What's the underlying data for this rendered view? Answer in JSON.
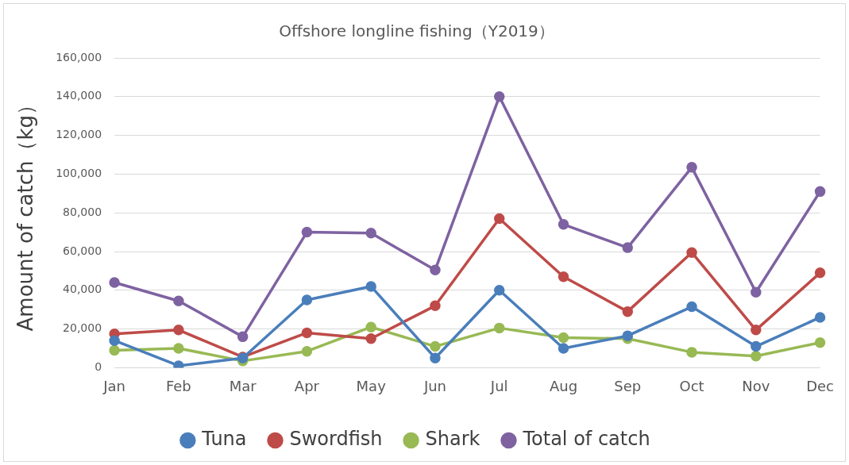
{
  "chart_data": {
    "type": "line",
    "title": "Offshore longline fishing（Y2019）",
    "ylabel": "Amount of catch（kg）",
    "categories": [
      "Jan",
      "Feb",
      "Mar",
      "Apr",
      "May",
      "Jun",
      "Jul",
      "Aug",
      "Sep",
      "Oct",
      "Nov",
      "Dec"
    ],
    "series": [
      {
        "name": "Tuna",
        "color": "#4a7ebb",
        "values": [
          14000,
          1000,
          5000,
          35000,
          42000,
          5000,
          40000,
          10000,
          16500,
          31500,
          11000,
          26000
        ]
      },
      {
        "name": "Swordfish",
        "color": "#be4b48",
        "values": [
          17500,
          19500,
          5500,
          18000,
          15000,
          32000,
          77000,
          47000,
          29000,
          59500,
          19500,
          49000
        ]
      },
      {
        "name": "Shark",
        "color": "#98b954",
        "values": [
          9000,
          10000,
          3500,
          8500,
          21000,
          11000,
          20500,
          15500,
          15000,
          8000,
          6000,
          13000
        ]
      },
      {
        "name": "Total of catch",
        "color": "#7e62a1",
        "values": [
          44000,
          34500,
          16000,
          70000,
          69500,
          50500,
          140000,
          74000,
          62000,
          103500,
          39000,
          91000
        ]
      }
    ],
    "ylim": [
      0,
      160000
    ],
    "yticks": [
      0,
      {
        "value": 20000,
        "label": "20,000"
      },
      {
        "value": 40000,
        "label": "40,000"
      },
      {
        "value": 60000,
        "label": "60,000"
      },
      {
        "value": 80000,
        "label": "80,000"
      },
      {
        "value": 100000,
        "label": "100,000"
      },
      {
        "value": 120000,
        "label": "120,000"
      },
      {
        "value": 140000,
        "label": "140,000"
      },
      {
        "value": 160000,
        "label": "160,000"
      }
    ],
    "grid": "y",
    "legend": "bottom",
    "marker": "circle",
    "line_style": "solid"
  }
}
